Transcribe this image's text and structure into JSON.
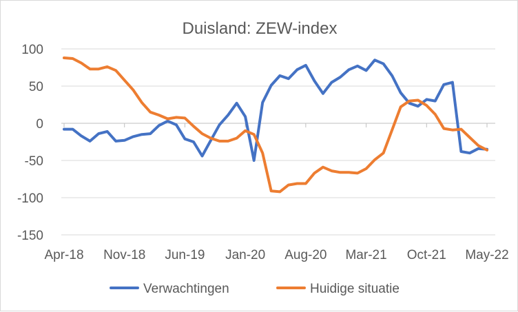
{
  "chart_data": {
    "type": "line",
    "title": "Duisland: ZEW-index",
    "xlabel": "",
    "ylabel": "",
    "ylim": [
      -150,
      100
    ],
    "y_ticks": [
      "100",
      "50",
      "0",
      "-50",
      "-100",
      "-150"
    ],
    "x_tick_labels": [
      "Apr-18",
      "Nov-18",
      "Jun-19",
      "Jan-20",
      "Aug-20",
      "Mar-21",
      "Oct-21",
      "May-22"
    ],
    "grid": "horizontal",
    "legend": "bottom",
    "x": [
      "Apr-18",
      "May-18",
      "Jun-18",
      "Jul-18",
      "Aug-18",
      "Sep-18",
      "Oct-18",
      "Nov-18",
      "Dec-18",
      "Jan-19",
      "Feb-19",
      "Mar-19",
      "Apr-19",
      "May-19",
      "Jun-19",
      "Jul-19",
      "Aug-19",
      "Sep-19",
      "Oct-19",
      "Nov-19",
      "Dec-19",
      "Jan-20",
      "Feb-20",
      "Mar-20",
      "Apr-20",
      "May-20",
      "Jun-20",
      "Jul-20",
      "Aug-20",
      "Sep-20",
      "Oct-20",
      "Nov-20",
      "Dec-20",
      "Jan-21",
      "Feb-21",
      "Mar-21",
      "Apr-21",
      "May-21",
      "Jun-21",
      "Jul-21",
      "Aug-21",
      "Sep-21",
      "Oct-21",
      "Nov-21",
      "Dec-21",
      "Jan-22",
      "Feb-22",
      "Mar-22",
      "Apr-22",
      "May-22"
    ],
    "series": [
      {
        "name": "Verwachtingen",
        "color": "#4472c4",
        "values": [
          -8,
          -8,
          -17,
          -24,
          -14,
          -11,
          -24,
          -23,
          -18,
          -15,
          -14,
          -3,
          3,
          -2,
          -21,
          -25,
          -44,
          -23,
          -2,
          11,
          27,
          9,
          -50,
          28,
          51,
          64,
          60,
          72,
          78,
          57,
          40,
          55,
          62,
          72,
          77,
          71,
          85,
          80,
          64,
          41,
          27,
          23,
          32,
          30,
          52,
          55,
          -38,
          -40,
          -34,
          -35
        ]
      },
      {
        "name": "Huidige situatie",
        "color": "#ed7d31",
        "values": [
          88,
          87,
          81,
          73,
          73,
          76,
          71,
          58,
          45,
          28,
          15,
          11,
          6,
          8,
          7,
          -4,
          -14,
          -20,
          -24,
          -24,
          -20,
          -10,
          -15,
          -40,
          -91,
          -92,
          -83,
          -81,
          -81,
          -67,
          -59,
          -64,
          -66,
          -66,
          -67,
          -61,
          -49,
          -40,
          -9,
          22,
          30,
          31,
          24,
          12,
          -7,
          -9,
          -8,
          -19,
          -30,
          -36
        ]
      }
    ]
  }
}
